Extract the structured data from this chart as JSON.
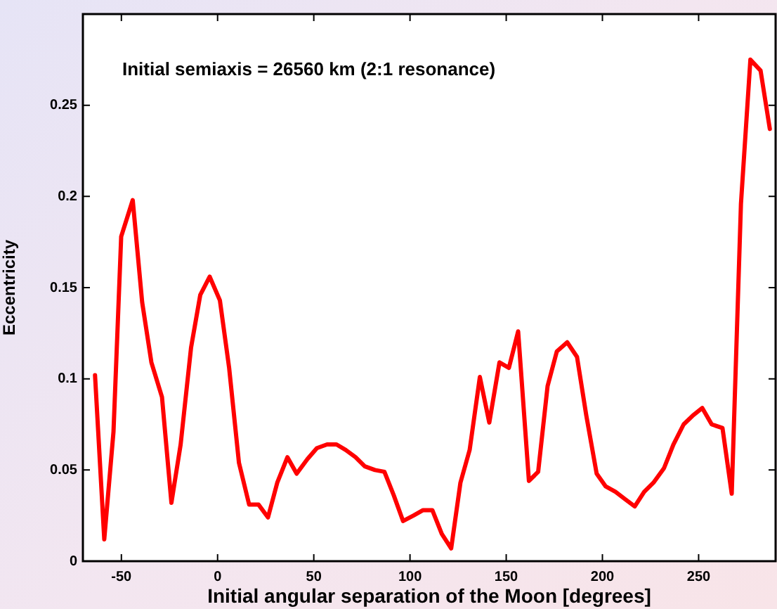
{
  "chart_data": {
    "type": "line",
    "annotations": [
      "Initial semiaxis = 26560 km (2:1 resonance)"
    ],
    "xlabel": "Initial angular separation of the Moon [degrees]",
    "ylabel": "Eccentricity",
    "x": [
      -63.7,
      -58.9,
      -54.1,
      -50.1,
      -44.1,
      -39.2,
      -34.4,
      -28.9,
      -24,
      -19.2,
      -13.8,
      -9,
      -4.1,
      1.2,
      6,
      11.1,
      16.4,
      21.3,
      26.2,
      31,
      36.3,
      41.1,
      46.7,
      51.6,
      56.9,
      61.8,
      66.6,
      71.7,
      76.5,
      81.8,
      86.7,
      91.6,
      96.4,
      101.8,
      106.8,
      111.6,
      116.5,
      121.4,
      126.2,
      131,
      136.3,
      141.2,
      146.5,
      151.4,
      156.2,
      161.8,
      166.6,
      171.5,
      176.3,
      181.7,
      186.8,
      191.6,
      197,
      201.7,
      206.8,
      211.8,
      216.8,
      221.7,
      226.5,
      232,
      236.9,
      242.2,
      247.1,
      251.9,
      256.8,
      262.4,
      267.2,
      272,
      276.9,
      282.2,
      287
    ],
    "series": [
      {
        "color": "#ff0000",
        "values": [
          0.102,
          0.012,
          0.071,
          0.178,
          0.198,
          0.142,
          0.109,
          0.09,
          0.032,
          0.064,
          0.117,
          0.146,
          0.156,
          0.143,
          0.106,
          0.054,
          0.031,
          0.031,
          0.024,
          0.043,
          0.057,
          0.048,
          0.056,
          0.062,
          0.064,
          0.064,
          0.061,
          0.057,
          0.052,
          0.05,
          0.049,
          0.036,
          0.022,
          0.025,
          0.028,
          0.028,
          0.015,
          0.007,
          0.043,
          0.061,
          0.101,
          0.076,
          0.109,
          0.106,
          0.126,
          0.044,
          0.049,
          0.096,
          0.115,
          0.12,
          0.112,
          0.08,
          0.048,
          0.041,
          0.038,
          0.034,
          0.03,
          0.038,
          0.043,
          0.051,
          0.064,
          0.075,
          0.08,
          0.084,
          0.075,
          0.073,
          0.037,
          0.196,
          0.275,
          0.269,
          0.237
        ]
      }
    ],
    "xlim": [
      -70,
      290
    ],
    "xticks": [
      -50,
      0,
      50,
      100,
      150,
      200,
      250
    ],
    "ylim": [
      0,
      0.3
    ],
    "yticks": [
      0,
      0.05,
      0.1,
      0.15,
      0.2,
      0.25
    ],
    "marker": "none",
    "line_style": "solid"
  }
}
